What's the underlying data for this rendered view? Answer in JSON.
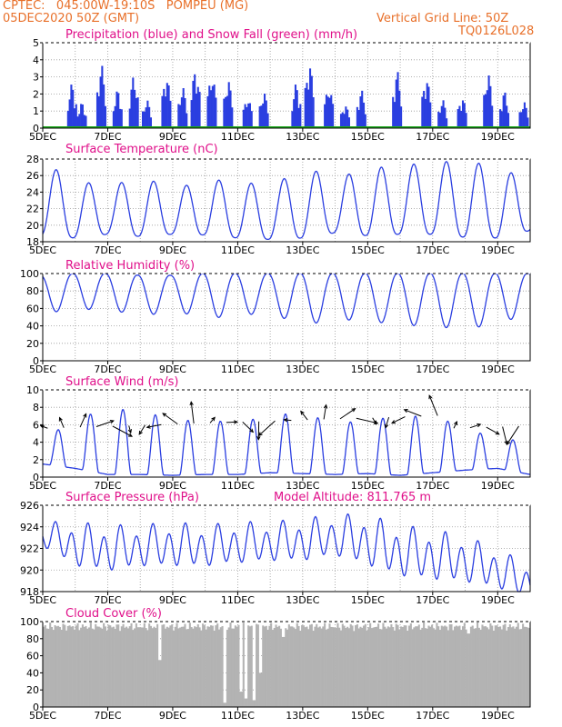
{
  "header": {
    "line1": "CPTEC:   045:00W-19:10S   POMPEU (MG)",
    "line2": "05DEC2020 50Z (GMT)",
    "grid_note": "Vertical Grid Line: 50Z",
    "code": "TQ0126L028"
  },
  "colors": {
    "header": "#e8702a",
    "title": "#e0108a",
    "line": "#2a3ee0",
    "snow": "#1aa81a",
    "cloud": "#b3b3b3",
    "arrow": "#000000"
  },
  "x_axis": {
    "ticks": [
      "5DEC",
      "7DEC",
      "9DEC",
      "11DEC",
      "13DEC",
      "15DEC",
      "17DEC",
      "19DEC"
    ]
  },
  "chart_data": [
    {
      "id": "precip",
      "type": "bar",
      "title": "Precipitation (blue) and Snow Fall (green) (mm/h)",
      "ylim": [
        0,
        5
      ],
      "yticks": [
        "0",
        "1",
        "2",
        "3",
        "4",
        "5"
      ],
      "series": [
        {
          "name": "Precipitation"
        },
        {
          "name": "Snow Fall"
        }
      ],
      "peaks": [
        {
          "day": 0.9,
          "value": 2.8
        },
        {
          "day": 1.2,
          "value": 1.6
        },
        {
          "day": 1.8,
          "value": 4.0
        },
        {
          "day": 2.3,
          "value": 2.4
        },
        {
          "day": 2.8,
          "value": 3.3
        },
        {
          "day": 3.2,
          "value": 1.8
        },
        {
          "day": 3.8,
          "value": 3.4
        },
        {
          "day": 4.3,
          "value": 2.6
        },
        {
          "day": 4.7,
          "value": 3.8
        },
        {
          "day": 5.2,
          "value": 3.5
        },
        {
          "day": 5.7,
          "value": 3.1
        },
        {
          "day": 6.3,
          "value": 2.0
        },
        {
          "day": 6.8,
          "value": 2.3
        },
        {
          "day": 7.8,
          "value": 2.8
        },
        {
          "day": 8.2,
          "value": 4.2
        },
        {
          "day": 8.8,
          "value": 2.7
        },
        {
          "day": 9.3,
          "value": 1.5
        },
        {
          "day": 9.8,
          "value": 2.4
        },
        {
          "day": 10.9,
          "value": 3.6
        },
        {
          "day": 11.8,
          "value": 3.3
        },
        {
          "day": 12.3,
          "value": 1.8
        },
        {
          "day": 12.9,
          "value": 2.0
        },
        {
          "day": 13.7,
          "value": 3.5
        },
        {
          "day": 14.2,
          "value": 2.3
        },
        {
          "day": 14.8,
          "value": 1.7
        },
        {
          "day": 15.4,
          "value": 1.3
        },
        {
          "day": 15.8,
          "value": 2.8
        },
        {
          "day": 16.3,
          "value": 2.6
        },
        {
          "day": 16.9,
          "value": 1.8
        },
        {
          "day": 17.4,
          "value": 3.7
        },
        {
          "day": 17.8,
          "value": 1.4
        },
        {
          "day": 18.4,
          "value": 2.2
        },
        {
          "day": 18.9,
          "value": 3.6
        },
        {
          "day": 19.3,
          "value": 2.0
        },
        {
          "day": 19.8,
          "value": 1.5
        }
      ],
      "snow": 0
    },
    {
      "id": "temp",
      "type": "line",
      "title": "Surface Temperature (nC)",
      "ylim": [
        17,
        28
      ],
      "yticks": [
        "18",
        "20",
        "22",
        "24",
        "26",
        "28"
      ],
      "daily_min": [
        17.8,
        17.5,
        18.0,
        17.7,
        18.0,
        17.9,
        17.5,
        17.3,
        17.5,
        18.2,
        17.8,
        18.0,
        18.0,
        17.6,
        17.5,
        18.5
      ],
      "daily_max": [
        27.5,
        25.3,
        24.2,
        25.8,
        24.0,
        25.2,
        25.2,
        24.2,
        27.0,
        25.5,
        26.7,
        27.2,
        27.5,
        27.9,
        26.8,
        25.3
      ]
    },
    {
      "id": "rh",
      "type": "line",
      "title": "Relative Humidity (%)",
      "ylim": [
        0,
        100
      ],
      "yticks": [
        "0",
        "20",
        "40",
        "60",
        "80",
        "100"
      ],
      "daily_min": [
        55,
        58,
        60,
        50,
        58,
        48,
        52,
        55,
        40,
        48,
        45,
        42,
        38,
        38,
        40,
        58
      ],
      "daily_max": [
        98,
        100,
        100,
        98,
        98,
        100,
        100,
        100,
        100,
        100,
        100,
        100,
        100,
        100,
        100,
        100
      ]
    },
    {
      "id": "wind",
      "type": "line",
      "title": "Surface Wind (m/s)",
      "ylim": [
        0,
        10
      ],
      "yticks": [
        "0",
        "2",
        "4",
        "6",
        "8",
        "10"
      ],
      "daily_min": [
        1.5,
        1.0,
        0.3,
        0.3,
        0.2,
        0.3,
        0.3,
        0.5,
        0.4,
        0.3,
        0.4,
        0.2,
        0.5,
        0.8,
        1.0,
        0.3
      ],
      "daily_max": [
        4.3,
        6.7,
        7.8,
        7.7,
        6.5,
        6.5,
        6.3,
        7.0,
        7.5,
        6.0,
        6.7,
        6.8,
        7.2,
        5.5,
        4.5,
        4.0
      ]
    },
    {
      "id": "pres",
      "type": "line",
      "title": "Surface Pressure (hPa)",
      "annotation": "Model Altitude: 811.765 m",
      "ylim": [
        918,
        926
      ],
      "yticks": [
        "918",
        "920",
        "922",
        "924",
        "926"
      ],
      "daily_min": [
        922.0,
        920.0,
        919.5,
        920.0,
        920.0,
        920.0,
        920.3,
        920.5,
        920.5,
        921.0,
        920.0,
        919.0,
        918.7,
        918.5,
        918.0,
        917.0
      ],
      "daily_max": [
        924.5,
        924.5,
        924.2,
        924.2,
        924.5,
        924.2,
        924.5,
        924.5,
        924.8,
        925.2,
        925.2,
        924.2,
        923.8,
        923.2,
        922.0,
        920.5
      ]
    },
    {
      "id": "cloud",
      "type": "area",
      "title": "Cloud Cover (%)",
      "ylim": [
        0,
        100
      ],
      "yticks": [
        "0",
        "20",
        "40",
        "60",
        "80",
        "100"
      ],
      "typical_value": 94,
      "dips": [
        {
          "day": 3.6,
          "value": 55
        },
        {
          "day": 5.6,
          "value": 5
        },
        {
          "day": 6.1,
          "value": 18
        },
        {
          "day": 6.25,
          "value": 10
        },
        {
          "day": 6.5,
          "value": 8
        },
        {
          "day": 6.7,
          "value": 40
        },
        {
          "day": 7.4,
          "value": 82
        },
        {
          "day": 13.1,
          "value": 86
        }
      ]
    }
  ]
}
